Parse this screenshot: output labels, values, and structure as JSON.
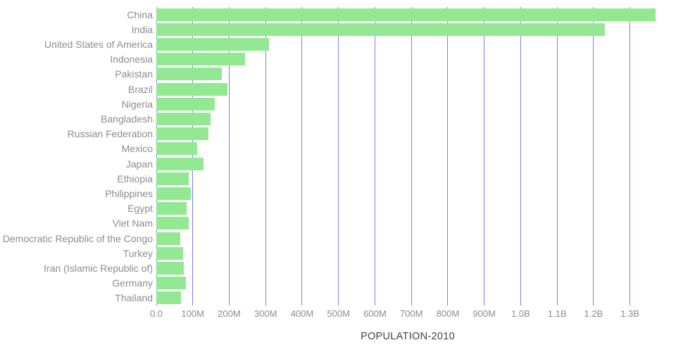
{
  "chart_data": {
    "type": "bar",
    "orientation": "horizontal",
    "title": "",
    "xlabel": "POPULATION-2010",
    "ylabel": "",
    "unit": "millions",
    "categories": [
      "China",
      "India",
      "United States of America",
      "Indonesia",
      "Pakistan",
      "Brazil",
      "Nigeria",
      "Bangladesh",
      "Russian Federation",
      "Mexico",
      "Japan",
      "Ethiopia",
      "Philippines",
      "Egypt",
      "Viet Nam",
      "Democratic Republic of the Congo",
      "Turkey",
      "Iran (Islamic Republic of)",
      "Germany",
      "Thailand"
    ],
    "values": [
      1370,
      1231,
      309,
      244,
      179,
      196,
      160,
      148,
      143,
      112,
      129,
      89,
      94,
      84,
      88,
      66,
      73,
      75,
      81,
      67
    ],
    "xlim": [
      0,
      1380
    ],
    "xticks": [
      {
        "value": 0,
        "label": "0.0"
      },
      {
        "value": 100,
        "label": "100M"
      },
      {
        "value": 200,
        "label": "200M"
      },
      {
        "value": 300,
        "label": "300M"
      },
      {
        "value": 400,
        "label": "400M"
      },
      {
        "value": 500,
        "label": "500M"
      },
      {
        "value": 600,
        "label": "600M"
      },
      {
        "value": 700,
        "label": "700M"
      },
      {
        "value": 800,
        "label": "800M"
      },
      {
        "value": 900,
        "label": "900M"
      },
      {
        "value": 1000,
        "label": "1.0B"
      },
      {
        "value": 1100,
        "label": "1.1B"
      },
      {
        "value": 1200,
        "label": "1.2B"
      },
      {
        "value": 1300,
        "label": "1.3B"
      }
    ],
    "grid": true,
    "legend": null,
    "colors": {
      "bar": "#92e992",
      "gridline": "#7f7fe6",
      "category_label": "#8d8d92",
      "tick_label": "#8d8d92",
      "axis_title": "#444444",
      "background": "#ffffff"
    }
  }
}
